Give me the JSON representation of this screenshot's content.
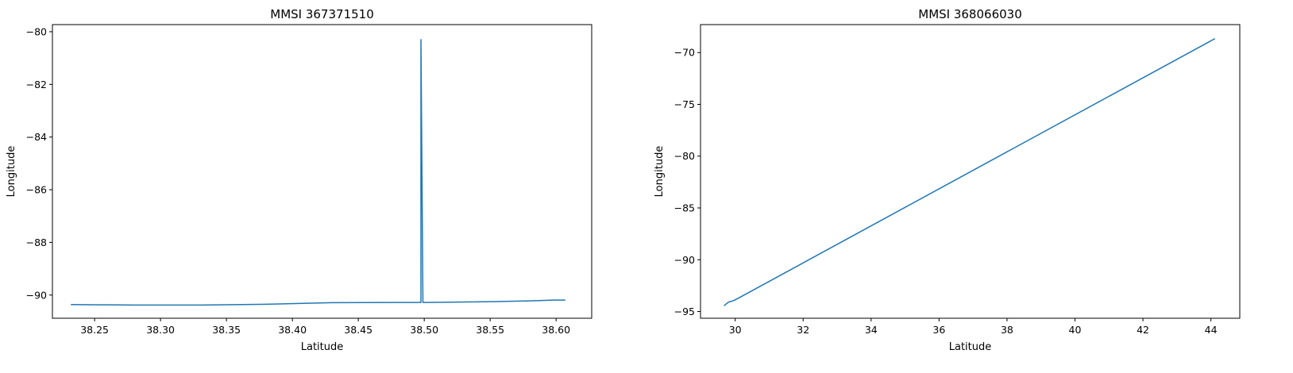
{
  "chart_data": [
    {
      "type": "line",
      "title": "MMSI 367371510",
      "xlabel": "Latitude",
      "ylabel": "Longitude",
      "xlim": [
        38.218,
        38.627
      ],
      "ylim": [
        -90.88,
        -79.73
      ],
      "xticks": [
        38.25,
        38.3,
        38.35,
        38.4,
        38.45,
        38.5,
        38.55,
        38.6
      ],
      "xtick_labels": [
        "38.25",
        "38.30",
        "38.35",
        "38.40",
        "38.45",
        "38.50",
        "38.55",
        "38.60"
      ],
      "yticks": [
        -90,
        -88,
        -86,
        -84,
        -82,
        -80
      ],
      "ytick_labels": [
        "−90",
        "−88",
        "−86",
        "−84",
        "−82",
        "−80"
      ],
      "grid": false,
      "color": "#1f77b4",
      "series": [
        {
          "x": [
            38.232,
            38.28,
            38.33,
            38.38,
            38.43,
            38.48,
            38.497,
            38.4975,
            38.4975,
            38.499,
            38.52,
            38.55,
            38.58,
            38.598,
            38.607
          ],
          "y": [
            -90.36,
            -90.38,
            -90.38,
            -90.35,
            -90.29,
            -90.28,
            -90.28,
            -90.28,
            -80.3,
            -90.28,
            -90.27,
            -90.25,
            -90.22,
            -90.19,
            -90.19
          ]
        }
      ]
    },
    {
      "type": "line",
      "title": "MMSI 368066030",
      "xlabel": "Latitude",
      "ylabel": "Longitude",
      "xlim": [
        28.98,
        44.85
      ],
      "ylim": [
        -95.65,
        -67.3
      ],
      "xticks": [
        30,
        32,
        34,
        36,
        38,
        40,
        42,
        44
      ],
      "xtick_labels": [
        "30",
        "32",
        "34",
        "36",
        "38",
        "40",
        "42",
        "44"
      ],
      "yticks": [
        -95,
        -90,
        -85,
        -80,
        -75,
        -70
      ],
      "ytick_labels": [
        "−95",
        "−90",
        "−85",
        "−80",
        "−75",
        "−70"
      ],
      "grid": false,
      "color": "#1f77b4",
      "series": [
        {
          "x": [
            29.67,
            29.8,
            29.95,
            30.1,
            44.12
          ],
          "y": [
            -94.45,
            -94.1,
            -93.95,
            -93.7,
            -68.65
          ]
        }
      ]
    }
  ]
}
